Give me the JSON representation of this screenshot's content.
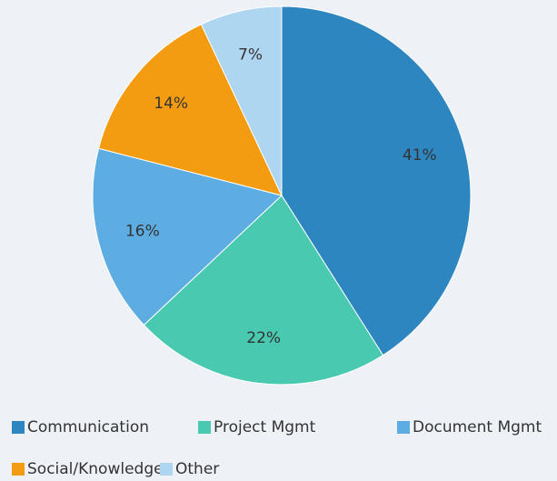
{
  "chart_data": {
    "type": "pie",
    "categories": [
      "Communication",
      "Project Mgmt",
      "Document Mgmt",
      "Social/Knowledge",
      "Other"
    ],
    "values": [
      41,
      22,
      16,
      14,
      7
    ],
    "value_labels": [
      "41%",
      "22%",
      "16%",
      "14%",
      "7%"
    ],
    "colors": [
      "#2e86c1",
      "#48c9b0",
      "#5dade2",
      "#f39c12",
      "#aed6f1"
    ]
  }
}
